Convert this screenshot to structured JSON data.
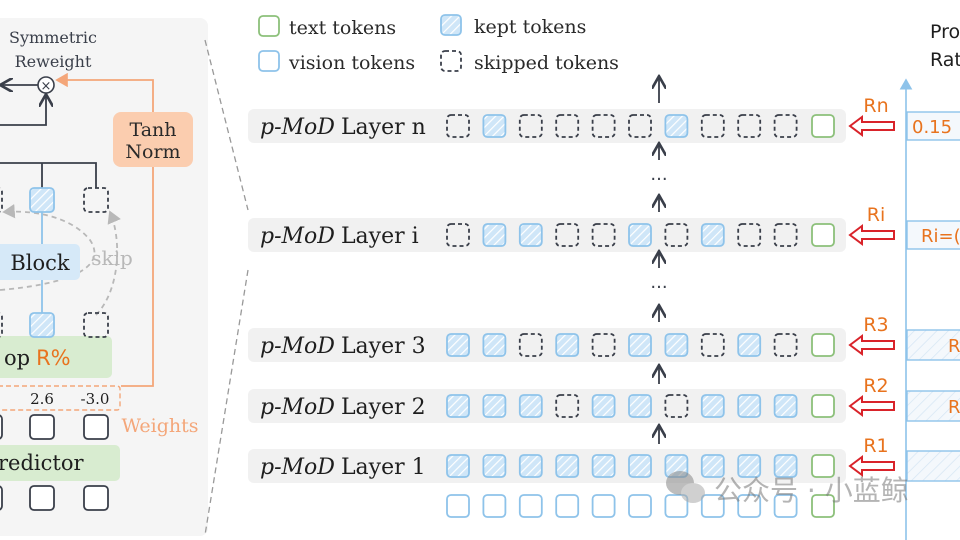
{
  "legend": {
    "text_tokens": "text tokens",
    "vision_tokens": "vision tokens",
    "kept_tokens": "kept tokens",
    "skipped_tokens": "skipped tokens"
  },
  "left_panel": {
    "reweight_line1": "Symmetric",
    "reweight_line2": "Reweight",
    "multiply_symbol": "×",
    "tanh_line1": "Tanh",
    "tanh_line2": "Norm",
    "block_label": "Block",
    "skip_label": "skip",
    "topr_prefix": "op",
    "topr_suffix": "R%",
    "weight_values": [
      "2.6",
      "-3.0"
    ],
    "weights_label": "Weights",
    "predictor_label": "redictor"
  },
  "layers": [
    {
      "prefix": "p-MoD",
      "name": "Layer n",
      "ratio_label": "Rn",
      "ratio_bar_text": "0.15",
      "tokens": [
        "S",
        "K",
        "S",
        "S",
        "S",
        "S",
        "K",
        "S",
        "S",
        "S",
        "T"
      ]
    },
    {
      "prefix": "p-MoD",
      "name": "Layer i",
      "ratio_label": "Ri",
      "ratio_bar_text": "Ri=(",
      "tokens": [
        "S",
        "K",
        "K",
        "S",
        "S",
        "K",
        "S",
        "K",
        "S",
        "S",
        "T"
      ]
    },
    {
      "prefix": "p-MoD",
      "name": "Layer 3",
      "ratio_label": "R3",
      "ratio_bar_text": "R",
      "tokens": [
        "K",
        "K",
        "S",
        "K",
        "S",
        "K",
        "K",
        "S",
        "K",
        "S",
        "T"
      ]
    },
    {
      "prefix": "p-MoD",
      "name": "Layer 2",
      "ratio_label": "R2",
      "ratio_bar_text": "R",
      "tokens": [
        "K",
        "K",
        "K",
        "S",
        "K",
        "K",
        "S",
        "K",
        "K",
        "K",
        "T"
      ]
    },
    {
      "prefix": "p-MoD",
      "name": "Layer 1",
      "ratio_label": "R1",
      "ratio_bar_text": "",
      "tokens": [
        "K",
        "K",
        "K",
        "K",
        "K",
        "K",
        "K",
        "K",
        "K",
        "K",
        "T"
      ]
    }
  ],
  "input_tokens": [
    "V",
    "V",
    "V",
    "V",
    "V",
    "V",
    "V",
    "V",
    "V",
    "V",
    "T"
  ],
  "ellipsis": "···",
  "ratio_axis": {
    "title_line1": "Pro",
    "title_line2": "Rat"
  },
  "watermark": "公众号 · 小蓝鲸",
  "colors": {
    "text_token": "#8cc07a",
    "vision_token": "#8ec3ea",
    "skipped_token": "#3a3f4a",
    "ratio_label": "#e8731e",
    "ratio_arrow": "#d9232a",
    "tanh_box": "#fbcdaf",
    "green_box": "#d8ecd0",
    "block_box": "#d6e9f8",
    "weights": "#f4a679"
  }
}
